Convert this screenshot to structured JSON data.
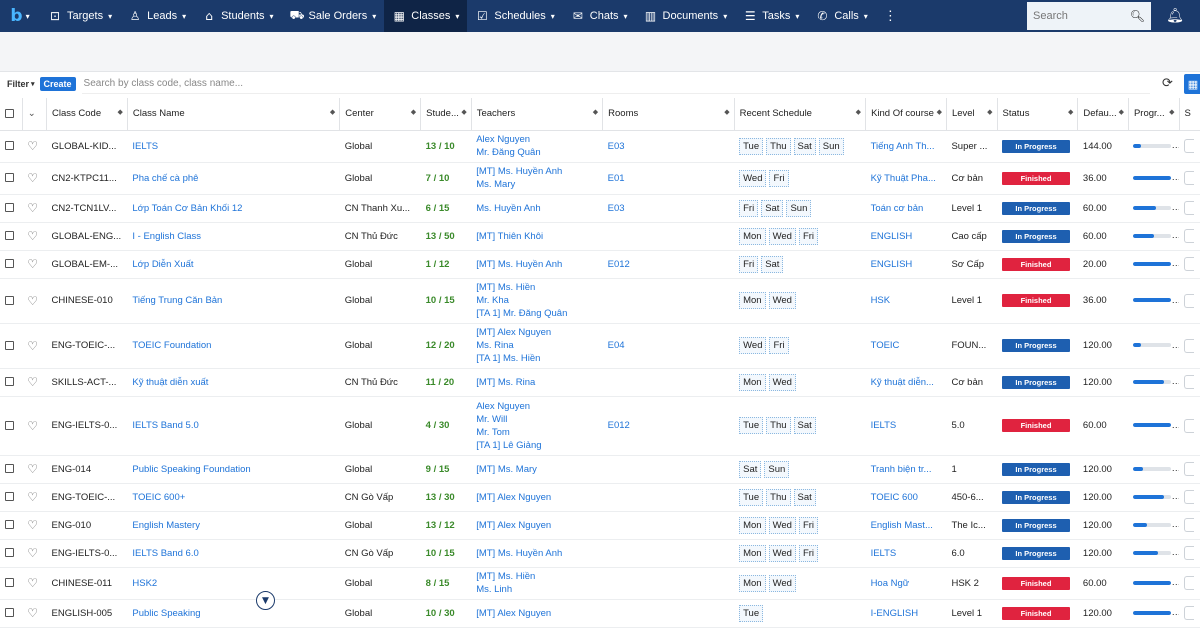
{
  "nav": {
    "items": [
      {
        "label": "Targets",
        "icon": "targets-icon",
        "glyph": "⊡"
      },
      {
        "label": "Leads",
        "icon": "leads-icon",
        "glyph": "♙"
      },
      {
        "label": "Students",
        "icon": "students-icon",
        "glyph": "⌂"
      },
      {
        "label": "Sale Orders",
        "icon": "cart-icon",
        "glyph": "⛟"
      },
      {
        "label": "Classes",
        "icon": "classes-icon",
        "glyph": "▦",
        "active": true
      },
      {
        "label": "Schedules",
        "icon": "calendar-icon",
        "glyph": "☑"
      },
      {
        "label": "Chats",
        "icon": "chat-icon",
        "glyph": "✉"
      },
      {
        "label": "Documents",
        "icon": "documents-icon",
        "glyph": "▥"
      },
      {
        "label": "Tasks",
        "icon": "tasks-icon",
        "glyph": "☰"
      },
      {
        "label": "Calls",
        "icon": "phone-icon",
        "glyph": "✆"
      }
    ],
    "more": "⋮",
    "search_placeholder": "Search"
  },
  "toolbar": {
    "filter_label": "Filter",
    "create_label": "Create",
    "search_placeholder": "Search by class code, class name..."
  },
  "columns": [
    {
      "key": "code",
      "label": "Class Code",
      "width": 80
    },
    {
      "key": "name",
      "label": "Class Name",
      "width": 210
    },
    {
      "key": "center",
      "label": "Center",
      "width": 80
    },
    {
      "key": "students",
      "label": "Stude...",
      "width": 50
    },
    {
      "key": "teachers",
      "label": "Teachers",
      "width": 130
    },
    {
      "key": "rooms",
      "label": "Rooms",
      "width": 130
    },
    {
      "key": "schedule",
      "label": "Recent Schedule",
      "width": 130
    },
    {
      "key": "kind",
      "label": "Kind Of course",
      "width": 80
    },
    {
      "key": "level",
      "label": "Level",
      "width": 50
    },
    {
      "key": "status",
      "label": "Status",
      "width": 80
    },
    {
      "key": "fee",
      "label": "Defau...",
      "width": 50
    },
    {
      "key": "progress",
      "label": "Progr...",
      "width": 50
    },
    {
      "key": "s",
      "label": "S",
      "width": 30
    }
  ],
  "rows": [
    {
      "code": "GLOBAL-KID...",
      "name": "IELTS",
      "center": "Global",
      "students": "13 / 10",
      "teachers": [
        "Alex Nguyen",
        "Mr. Đăng Quân"
      ],
      "rooms": "E03",
      "schedule": [
        "Tue",
        "Thu",
        "Sat",
        "Sun"
      ],
      "kind": "Tiếng Anh Th...",
      "level": "Super ...",
      "status": "In Progress",
      "fee": "144.00",
      "progress": 0.2,
      "s": "0"
    },
    {
      "code": "CN2-KTPC11...",
      "name": "Pha chế cà phê",
      "center": "Global",
      "students": "7 / 10",
      "teachers": [
        "[MT] Ms. Huyền Anh",
        "Ms. Mary"
      ],
      "rooms": "E01",
      "schedule": [
        "Wed",
        "Fri"
      ],
      "kind": "Kỹ Thuật Pha...",
      "level": "Cơ bản",
      "status": "Finished",
      "fee": "36.00",
      "progress": 1.0,
      "s": "0"
    },
    {
      "code": "CN2-TCN1LV...",
      "name": "Lớp Toán Cơ Bản Khối 12",
      "center": "CN Thanh Xu...",
      "students": "6 / 15",
      "teachers": [
        "Ms. Huyền Anh"
      ],
      "rooms": "E03",
      "schedule": [
        "Fri",
        "Sat",
        "Sun"
      ],
      "kind": "Toán cơ bản",
      "level": "Level 1",
      "status": "In Progress",
      "fee": "60.00",
      "progress": 0.6,
      "s": "0"
    },
    {
      "code": "GLOBAL-ENG...",
      "name": "I - English Class",
      "center": "CN Thủ Đức",
      "students": "13 / 50",
      "teachers": [
        "[MT] Thiên Khôi"
      ],
      "rooms": "",
      "schedule": [
        "Mon",
        "Wed",
        "Fri"
      ],
      "kind": "ENGLISH",
      "level": "Cao cấp",
      "status": "In Progress",
      "fee": "60.00",
      "progress": 0.55,
      "s": "1"
    },
    {
      "code": "GLOBAL-EM-...",
      "name": "Lớp Diễn Xuất",
      "center": "Global",
      "students": "1 / 12",
      "teachers": [
        "[MT] Ms. Huyền Anh"
      ],
      "rooms": "E012",
      "schedule": [
        "Fri",
        "Sat"
      ],
      "kind": "ENGLISH",
      "level": "Sơ Cấp",
      "status": "Finished",
      "fee": "20.00",
      "progress": 1.0,
      "s": "1"
    },
    {
      "code": "CHINESE-010",
      "name": "Tiếng Trung Căn Bản",
      "center": "Global",
      "students": "10 / 15",
      "teachers": [
        "[MT] Ms. Hiền",
        "Mr. Kha",
        "[TA 1] Mr. Đăng Quân"
      ],
      "rooms": "",
      "schedule": [
        "Mon",
        "Wed"
      ],
      "kind": "HSK",
      "level": "Level 1",
      "status": "Finished",
      "fee": "36.00",
      "progress": 1.0,
      "s": "2"
    },
    {
      "code": "ENG-TOEIC-...",
      "name": "TOEIC Foundation",
      "center": "Global",
      "students": "12 / 20",
      "teachers": [
        "[MT] Alex Nguyen",
        "Ms. Rina",
        "[TA 1] Ms. Hiền"
      ],
      "rooms": "E04",
      "schedule": [
        "Wed",
        "Fri"
      ],
      "kind": "TOEIC",
      "level": "FOUN...",
      "status": "In Progress",
      "fee": "120.00",
      "progress": 0.2,
      "s": "1"
    },
    {
      "code": "SKILLS-ACT-...",
      "name": "Kỹ thuật diễn xuất",
      "center": "CN Thủ Đức",
      "students": "11 / 20",
      "teachers": [
        "[MT] Ms. Rina"
      ],
      "rooms": "",
      "schedule": [
        "Mon",
        "Wed"
      ],
      "kind": "Kỹ thuật diễn...",
      "level": "Cơ bản",
      "status": "In Progress",
      "fee": "120.00",
      "progress": 0.8,
      "s": "0"
    },
    {
      "code": "ENG-IELTS-0...",
      "name": "IELTS Band 5.0",
      "center": "Global",
      "students": "4 / 30",
      "teachers": [
        "Alex Nguyen",
        "Mr. Will",
        "Mr. Tom",
        "[TA 1] Lê Giảng"
      ],
      "rooms": "E012",
      "schedule": [
        "Tue",
        "Thu",
        "Sat"
      ],
      "kind": "IELTS",
      "level": "5.0",
      "status": "Finished",
      "fee": "60.00",
      "progress": 1.0,
      "s": "1"
    },
    {
      "code": "ENG-014",
      "name": "Public Speaking Foundation",
      "center": "Global",
      "students": "9 / 15",
      "teachers": [
        "[MT] Ms. Mary"
      ],
      "rooms": "",
      "schedule": [
        "Sat",
        "Sun"
      ],
      "kind": "Tranh biện tr...",
      "level": "1",
      "status": "In Progress",
      "fee": "120.00",
      "progress": 0.25,
      "s": "0"
    },
    {
      "code": "ENG-TOEIC-...",
      "name": "TOEIC 600+",
      "center": "CN Gò Vấp",
      "students": "13 / 30",
      "teachers": [
        "[MT] Alex Nguyen"
      ],
      "rooms": "",
      "schedule": [
        "Tue",
        "Thu",
        "Sat"
      ],
      "kind": "TOEIC 600",
      "level": "450-6...",
      "status": "In Progress",
      "fee": "120.00",
      "progress": 0.8,
      "s": "2"
    },
    {
      "code": "ENG-010",
      "name": "English Mastery",
      "center": "Global",
      "students": "13 / 12",
      "teachers": [
        "[MT] Alex Nguyen"
      ],
      "rooms": "",
      "schedule": [
        "Mon",
        "Wed",
        "Fri"
      ],
      "kind": "English Mast...",
      "level": "The Ic...",
      "status": "In Progress",
      "fee": "120.00",
      "progress": 0.35,
      "s": "0"
    },
    {
      "code": "ENG-IELTS-0...",
      "name": "IELTS Band 6.0",
      "center": "CN Gò Vấp",
      "students": "10 / 15",
      "teachers": [
        "[MT] Ms. Huyền Anh"
      ],
      "rooms": "",
      "schedule": [
        "Mon",
        "Wed",
        "Fri"
      ],
      "kind": "IELTS",
      "level": "6.0",
      "status": "In Progress",
      "fee": "120.00",
      "progress": 0.65,
      "s": "1"
    },
    {
      "code": "CHINESE-011",
      "name": "HSK2",
      "center": "Global",
      "students": "8 / 15",
      "teachers": [
        "[MT] Ms. Hiền",
        "Ms. Linh"
      ],
      "rooms": "",
      "schedule": [
        "Mon",
        "Wed"
      ],
      "kind": "Hoa Ngữ",
      "level": "HSK 2",
      "status": "Finished",
      "fee": "60.00",
      "progress": 1.0,
      "s": "1"
    },
    {
      "code": "ENGLISH-005",
      "name": "Public Speaking",
      "center": "Global",
      "students": "10 / 30",
      "teachers": [
        "[MT] Alex Nguyen"
      ],
      "rooms": "",
      "schedule": [
        "Tue"
      ],
      "kind": "I-ENGLISH",
      "level": "Level 1",
      "status": "Finished",
      "fee": "120.00",
      "progress": 1.0,
      "s": "1"
    }
  ]
}
